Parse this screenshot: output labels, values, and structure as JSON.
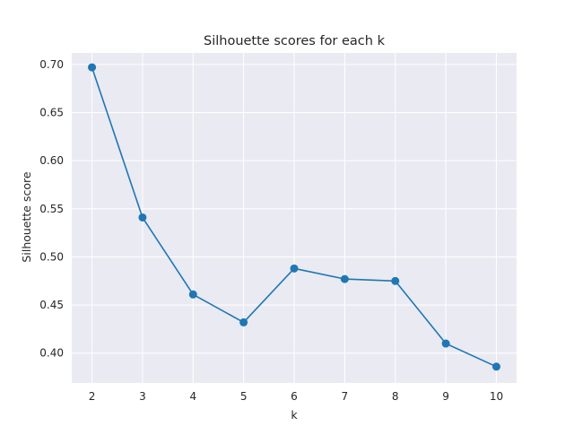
{
  "chart_data": {
    "type": "line",
    "title": "Silhouette scores for each k",
    "xlabel": "k",
    "ylabel": "Silhouette score",
    "x": [
      2,
      3,
      4,
      5,
      6,
      7,
      8,
      9,
      10
    ],
    "xticks": [
      "2",
      "3",
      "4",
      "5",
      "6",
      "7",
      "8",
      "9",
      "10"
    ],
    "yticks": [
      "0.40",
      "0.45",
      "0.50",
      "0.55",
      "0.60",
      "0.65",
      "0.70"
    ],
    "xlim": [
      1.6,
      10.4
    ],
    "ylim": [
      0.369,
      0.712
    ],
    "grid": true,
    "series": [
      {
        "values": [
          0.697,
          0.541,
          0.461,
          0.432,
          0.488,
          0.477,
          0.475,
          0.41,
          0.386
        ],
        "color": "#1f77b4",
        "marker": "circle"
      }
    ],
    "background": "#eaeaf2",
    "grid_color": "#ffffff"
  }
}
